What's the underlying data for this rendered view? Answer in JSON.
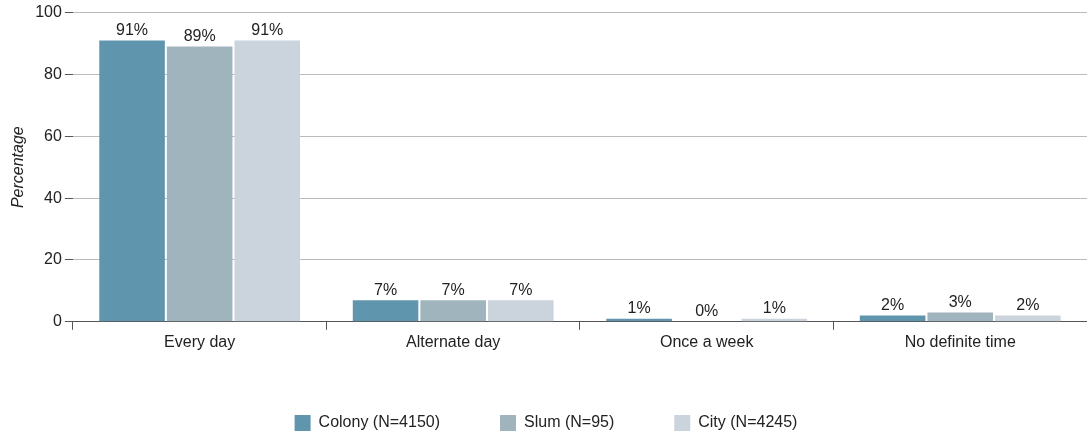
{
  "chart_data": {
    "type": "bar",
    "ylabel": "Percentage",
    "categories": [
      "Every day",
      "Alternate day",
      "Once a week",
      "No definite time"
    ],
    "series": [
      {
        "name": "Colony (N=4150)",
        "color": "#6096ad",
        "values": [
          91,
          7,
          1,
          2
        ],
        "value_labels": [
          "91%",
          "7%",
          "1%",
          "2%"
        ]
      },
      {
        "name": "Slum (N=95)",
        "color": "#9fb4bd",
        "values": [
          89,
          7,
          0,
          3
        ],
        "value_labels": [
          "89%",
          "7%",
          "0%",
          "3%"
        ]
      },
      {
        "name": "City (N=4245)",
        "color": "#cbd3dc",
        "values": [
          91,
          7,
          1,
          2
        ],
        "value_labels": [
          "91%",
          "7%",
          "1%",
          "2%"
        ]
      }
    ],
    "ylim": [
      0,
      100
    ],
    "yticks": [
      0,
      20,
      40,
      60,
      80,
      100
    ],
    "grid": "y",
    "legend": "bottom"
  }
}
